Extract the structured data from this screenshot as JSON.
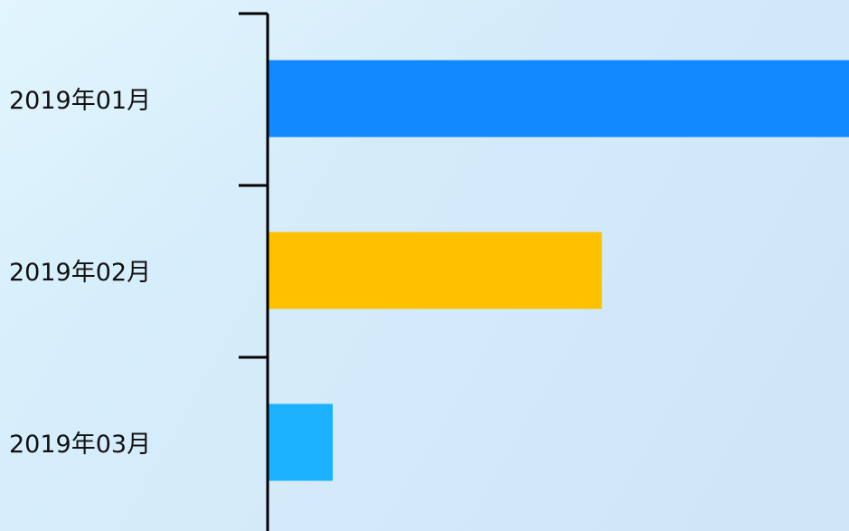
{
  "chart_data": {
    "type": "bar",
    "orientation": "horizontal",
    "categories": [
      "2019年01月",
      "2019年02月",
      "2019年03月"
    ],
    "values": [
      100,
      57.5,
      11.2
    ],
    "colors": [
      "#1188FF",
      "#FFC000",
      "#1BB1FF"
    ],
    "xlim": [
      0,
      100
    ],
    "title": "",
    "xlabel": "",
    "ylabel": "",
    "grid": false,
    "legend": "none"
  }
}
